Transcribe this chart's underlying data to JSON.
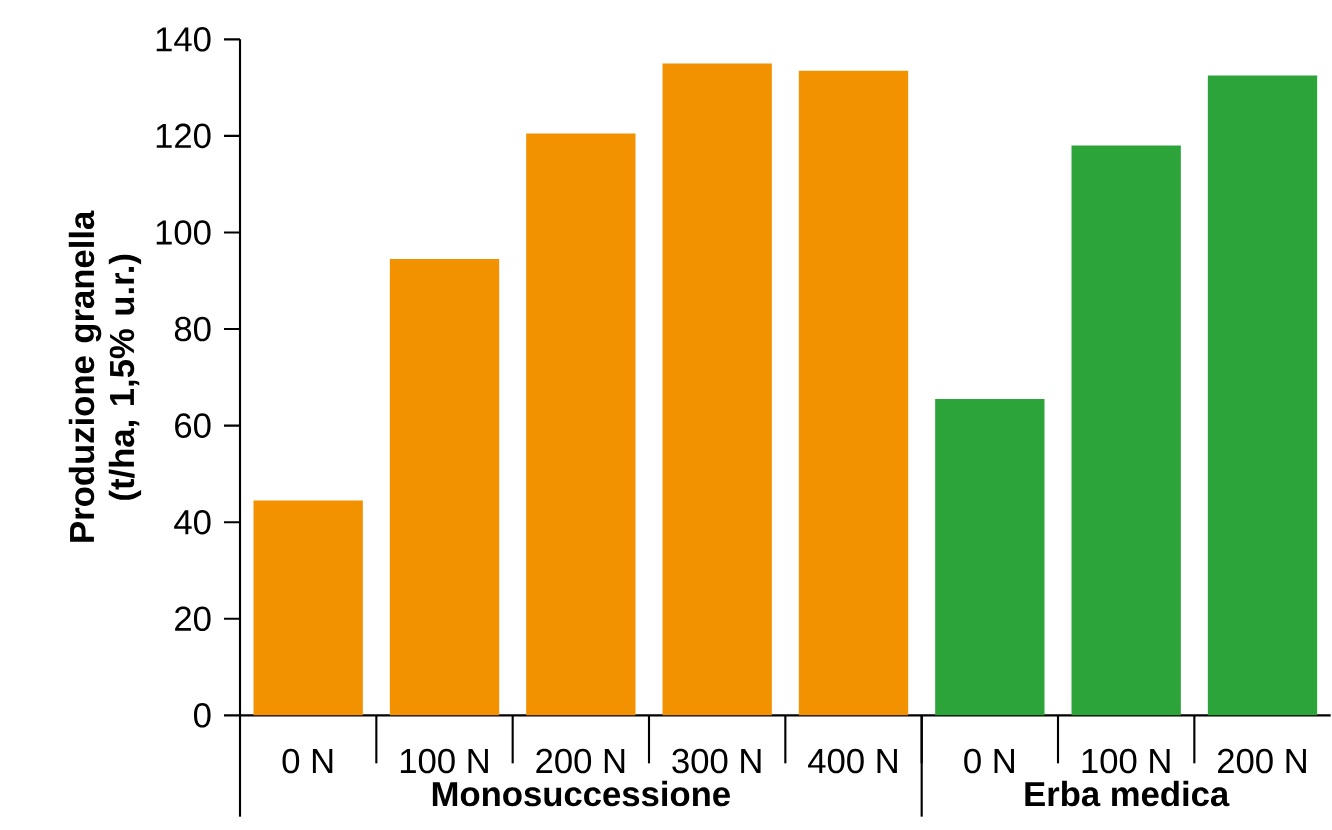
{
  "chart_data": {
    "type": "bar",
    "ylabel": "Produzione granella (t/ha, 1,5% u.r.)",
    "categories": [
      "0 N",
      "100 N",
      "200 N",
      "300 N",
      "400 N",
      "0 N",
      "100 N",
      "200 N"
    ],
    "series": [
      {
        "name": "Monosuccessione",
        "color": "#f39200",
        "values": [
          44.5,
          94.5,
          120.5,
          135,
          133.5,
          null,
          null,
          null
        ]
      },
      {
        "name": "Erba medica",
        "color": "#2ca43a",
        "values": [
          null,
          null,
          null,
          null,
          null,
          65.5,
          118,
          132.5
        ]
      }
    ],
    "ylim": [
      0,
      140
    ],
    "yticks": [
      0,
      20,
      40,
      60,
      80,
      100,
      120,
      140
    ],
    "grid": false,
    "legend": false
  }
}
